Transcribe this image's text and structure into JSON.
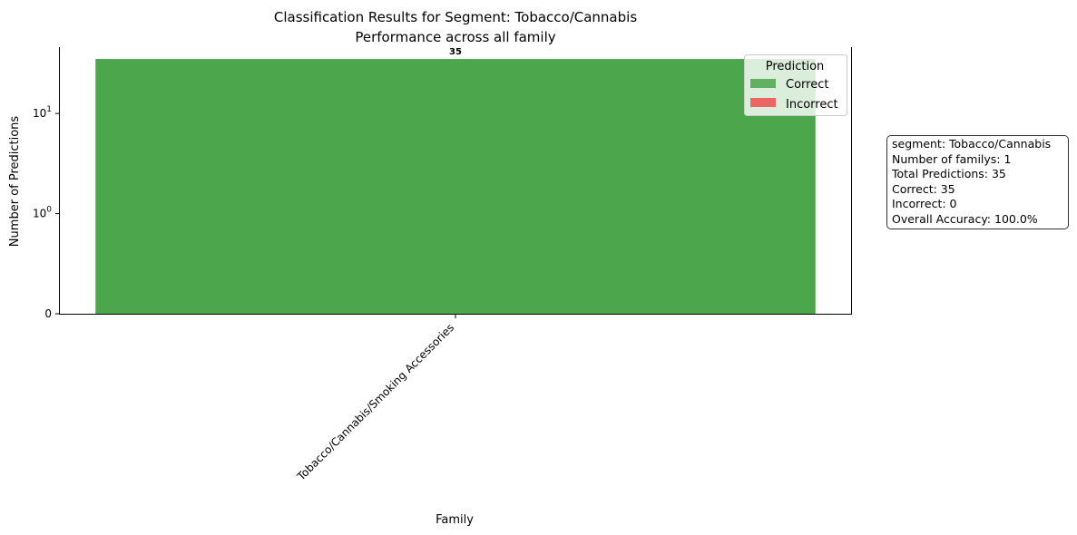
{
  "chart_data": {
    "type": "bar",
    "title": "Classification Results for Segment: Tobacco/Cannabis",
    "subtitle": "Performance across all family",
    "xlabel": "Family",
    "ylabel": "Number of Predictions",
    "yscale": "symlog",
    "categories": [
      "Tobacco/Cannabis/Smoking Accessories"
    ],
    "series": [
      {
        "name": "Correct",
        "values": [
          35
        ],
        "color": "#4ca64c"
      },
      {
        "name": "Incorrect",
        "values": [
          0
        ],
        "color": "#f04d4d"
      }
    ],
    "stacked": true,
    "bar_labels": [
      "35"
    ],
    "y_ticks": [
      {
        "value": 0,
        "base": "0",
        "exp": ""
      },
      {
        "value": 1,
        "base": "10",
        "exp": "0"
      },
      {
        "value": 10,
        "base": "10",
        "exp": "1"
      }
    ],
    "ylim": [
      0,
      45
    ],
    "legend": {
      "title": "Prediction",
      "placement": "top-right"
    },
    "grid": false
  },
  "stats_box": {
    "lines": [
      "segment: Tobacco/Cannabis",
      "Number of familys: 1",
      "Total Predictions: 35",
      "Correct: 35",
      "Incorrect: 0",
      "Overall Accuracy: 100.0%"
    ]
  }
}
